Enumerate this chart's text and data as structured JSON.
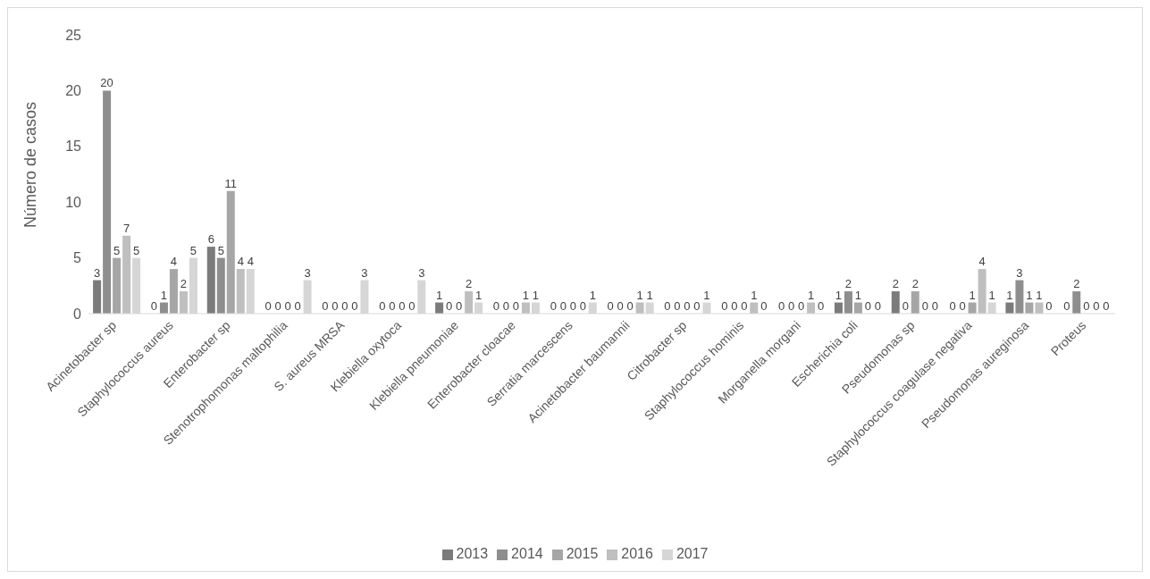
{
  "chart_data": {
    "type": "bar",
    "ylabel": "Número de casos",
    "categories": [
      "Acinetobacter sp",
      "Staphylococcus aureus",
      "Enterobacter sp",
      "Stenotrophomonas maltophilia",
      "S. aureus MRSA",
      "Klebiella oxytoca",
      "Klebiella pneumoniae",
      "Enterobacter cloacae",
      "Serratia marcescens",
      "Acinetobacter baumannii",
      "Citrobacter sp",
      "Staphylococcus hominis",
      "Morganella morgani",
      "Escherichia coli",
      "Pseudomonas sp",
      "Staphylococcus coagulase negativa",
      "Pseudomonas aureginosa",
      "Proteus"
    ],
    "series": [
      {
        "name": "2013",
        "color": "#7b7b7b",
        "values": [
          3,
          0,
          6,
          0,
          0,
          0,
          1,
          0,
          0,
          0,
          0,
          0,
          0,
          1,
          2,
          0,
          1,
          0
        ]
      },
      {
        "name": "2014",
        "color": "#8e8e8e",
        "values": [
          20,
          1,
          5,
          0,
          0,
          0,
          0,
          0,
          0,
          0,
          0,
          0,
          0,
          2,
          0,
          0,
          3,
          2
        ]
      },
      {
        "name": "2015",
        "color": "#a6a6a6",
        "values": [
          5,
          4,
          11,
          0,
          0,
          0,
          0,
          0,
          0,
          0,
          0,
          0,
          0,
          1,
          2,
          1,
          1,
          0
        ]
      },
      {
        "name": "2016",
        "color": "#bfbfbf",
        "values": [
          7,
          2,
          4,
          0,
          0,
          0,
          2,
          1,
          0,
          1,
          0,
          1,
          1,
          0,
          0,
          4,
          1,
          0
        ]
      },
      {
        "name": "2017",
        "color": "#d6d6d6",
        "values": [
          5,
          5,
          4,
          3,
          3,
          3,
          1,
          1,
          1,
          1,
          1,
          0,
          0,
          0,
          0,
          1,
          0,
          0
        ]
      }
    ],
    "ylim": [
      0,
      25
    ],
    "yticks": [
      0,
      5,
      10,
      15,
      20,
      25
    ],
    "grid": false,
    "legend": "bottom",
    "data_labels": true
  }
}
